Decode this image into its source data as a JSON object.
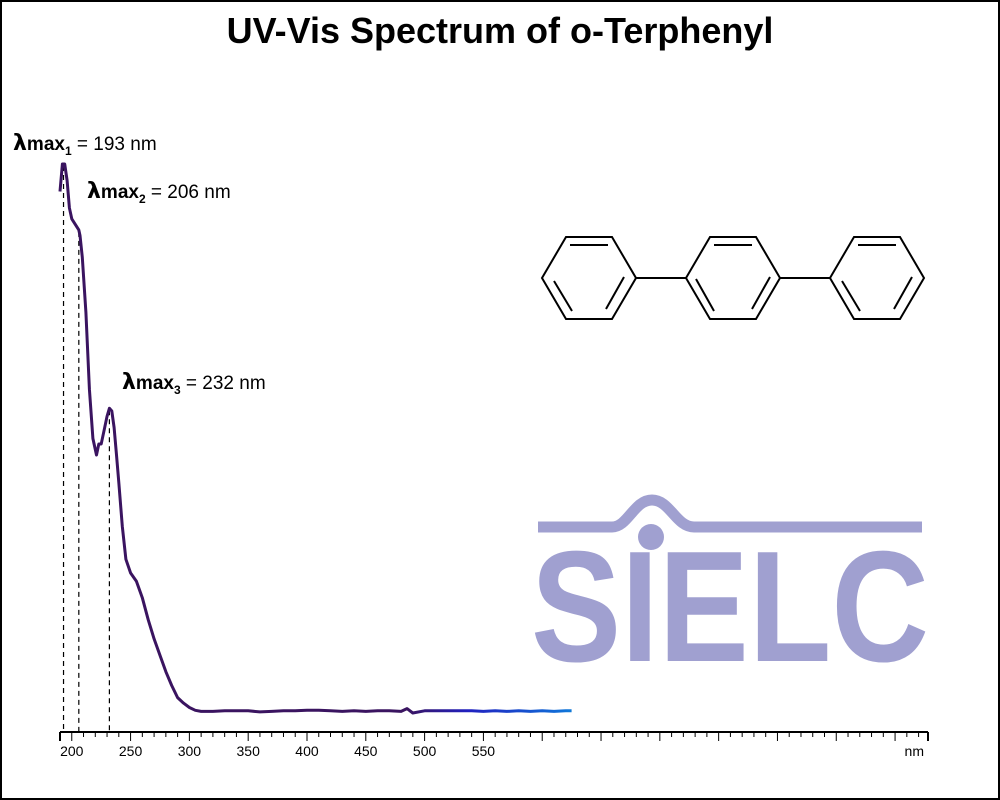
{
  "chart_data": {
    "type": "line",
    "title": "UV-Vis Spectrum of o-Terphenyl",
    "xlabel": "",
    "ylabel": "",
    "x_unit": "nm",
    "xlim": [
      190,
      928
    ],
    "ylim": [
      0,
      1
    ],
    "xticks": [
      200,
      250,
      300,
      350,
      400,
      450,
      500,
      550
    ],
    "grid": false,
    "line_color": "#3a1460",
    "visible_color_gradient": true,
    "series": [
      {
        "x": [
          190,
          192,
          193,
          194,
          196,
          198,
          200,
          203,
          206,
          207,
          209,
          212,
          215,
          218,
          221,
          223,
          225,
          228,
          230,
          232,
          234,
          236,
          238,
          240,
          243,
          246,
          250,
          255,
          260,
          265,
          270,
          275,
          280,
          285,
          290,
          295,
          300,
          305,
          310,
          320,
          330,
          340,
          350,
          360,
          370,
          380,
          390,
          400,
          410,
          420,
          430,
          440,
          450,
          460,
          470,
          480,
          485,
          490,
          500,
          510,
          520,
          530,
          540,
          550,
          560,
          570,
          580,
          590,
          600,
          610,
          620,
          625
        ],
        "y": [
          0.95,
          1.0,
          1.0,
          1.0,
          0.97,
          0.92,
          0.9,
          0.89,
          0.88,
          0.87,
          0.83,
          0.73,
          0.59,
          0.5,
          0.47,
          0.49,
          0.49,
          0.52,
          0.54,
          0.555,
          0.55,
          0.52,
          0.47,
          0.42,
          0.34,
          0.28,
          0.255,
          0.24,
          0.21,
          0.17,
          0.135,
          0.105,
          0.075,
          0.05,
          0.028,
          0.018,
          0.01,
          0.005,
          0.003,
          0.003,
          0.004,
          0.004,
          0.004,
          0.002,
          0.003,
          0.004,
          0.004,
          0.005,
          0.005,
          0.004,
          0.003,
          0.004,
          0.003,
          0.004,
          0.004,
          0.003,
          0.008,
          0.0,
          0.004,
          0.004,
          0.004,
          0.004,
          0.004,
          0.003,
          0.004,
          0.003,
          0.004,
          0.003,
          0.004,
          0.003,
          0.004,
          0.004
        ]
      }
    ],
    "annotations": [
      {
        "lambda": "λ",
        "max": "max",
        "sub": "1",
        "value": " = 193 nm",
        "x": 193
      },
      {
        "lambda": "λ",
        "max": "max",
        "sub": "2",
        "value": " = 206 nm",
        "x": 206
      },
      {
        "lambda": "λ",
        "max": "max",
        "sub": "3",
        "value": " = 232 nm",
        "x": 232
      }
    ]
  },
  "logo": {
    "text": "SIELC",
    "color": "#a0a0d0"
  },
  "structure": {
    "name": "o-terphenyl-structure-diagram"
  }
}
